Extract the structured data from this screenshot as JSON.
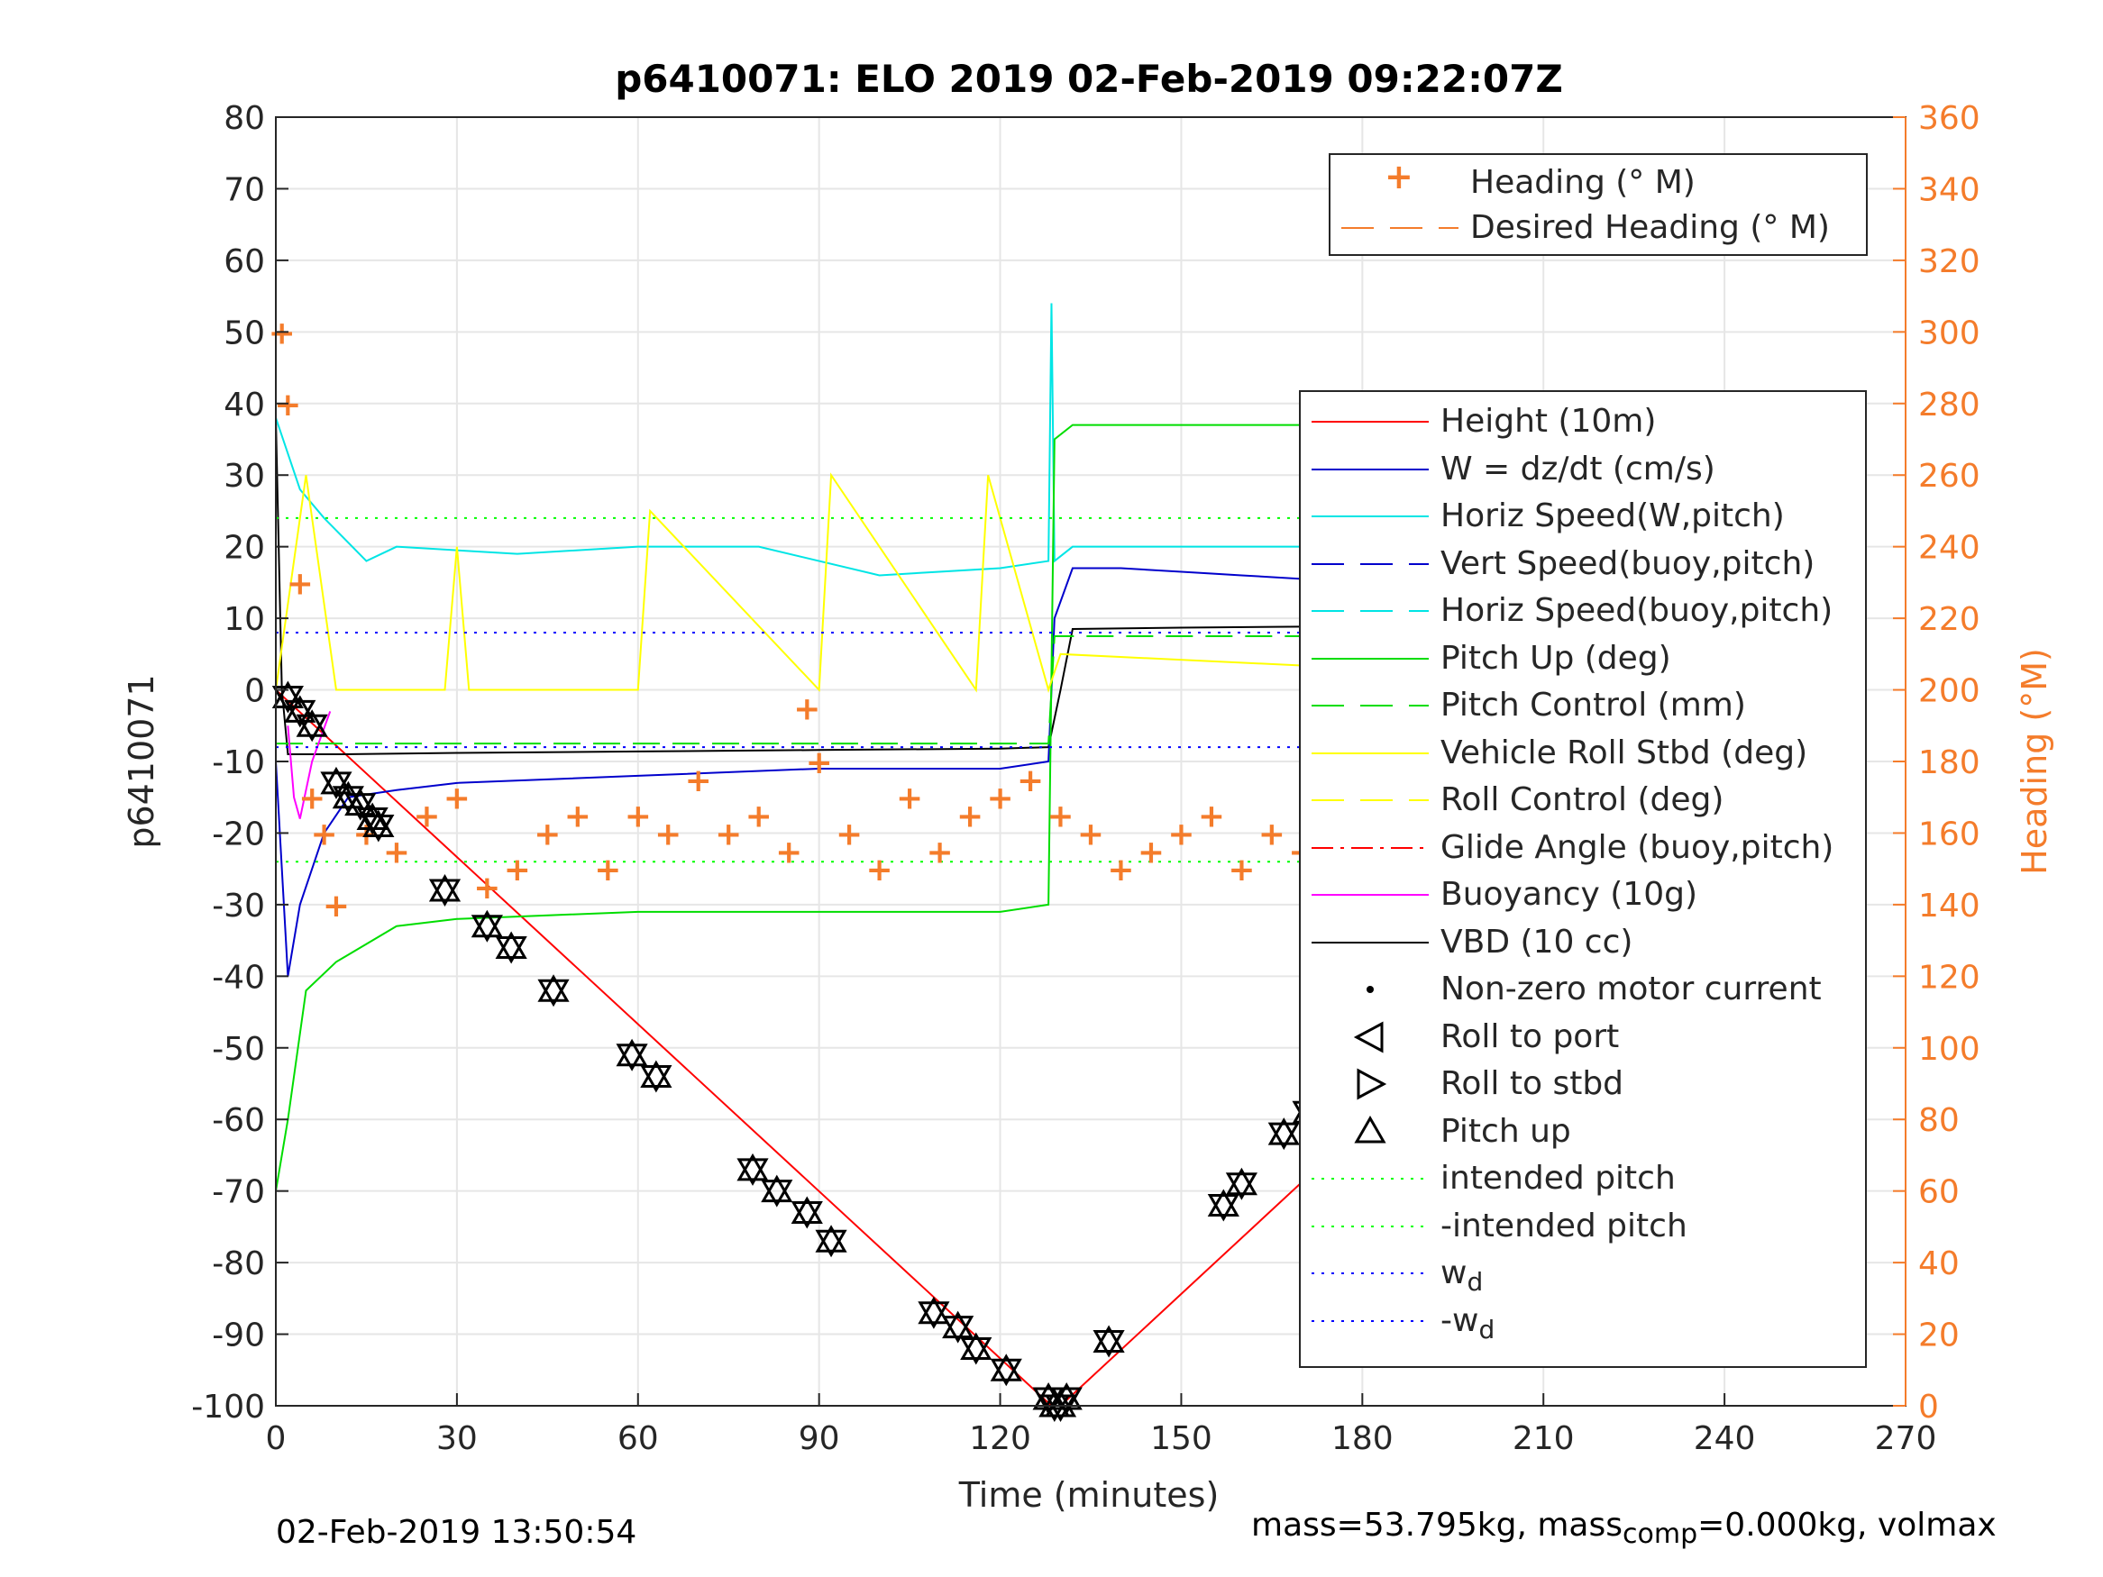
{
  "chart_data": {
    "type": "line",
    "title": "p6410071: ELO 2019 02-Feb-2019 09:22:07Z",
    "xlabel": "Time (minutes)",
    "ylabel": "p6410071",
    "y2label": "Heading (°M)",
    "xlim": [
      0,
      270
    ],
    "ylim": [
      -100,
      80
    ],
    "y2lim": [
      0,
      360
    ],
    "xticks": [
      0,
      30,
      60,
      90,
      120,
      150,
      180,
      210,
      240,
      270
    ],
    "yticks": [
      -100,
      -90,
      -80,
      -70,
      -60,
      -50,
      -40,
      -30,
      -20,
      -10,
      0,
      10,
      20,
      30,
      40,
      50,
      60,
      70,
      80
    ],
    "y2ticks": [
      0,
      20,
      40,
      60,
      80,
      100,
      120,
      140,
      160,
      180,
      200,
      220,
      240,
      260,
      280,
      300,
      320,
      340,
      360
    ],
    "grid": true,
    "colors": {
      "height": "#ff0000",
      "w": "#0000cc",
      "horiz": "#00e5e5",
      "pitch": "#00dd00",
      "roll": "#ffff00",
      "glide": "#ff0000",
      "buoy": "#ff00ff",
      "vbd": "#000000",
      "heading": "#f47c2b",
      "intended": "#00ff00",
      "wd": "#0000ff"
    },
    "legend_top": {
      "placement": "top-right",
      "entries": [
        "Heading (° M)",
        "Desired Heading (° M)"
      ]
    },
    "legend_main": {
      "placement": "right",
      "entries": [
        {
          "label": "Height (10m)",
          "style": "solid",
          "color": "#ff0000"
        },
        {
          "label": "W = dz/dt (cm/s)",
          "style": "solid",
          "color": "#0000cc"
        },
        {
          "label": "Horiz Speed(W,pitch)",
          "style": "solid",
          "color": "#00e5e5"
        },
        {
          "label": "Vert Speed(buoy,pitch)",
          "style": "dash",
          "color": "#0000cc"
        },
        {
          "label": "Horiz Speed(buoy,pitch)",
          "style": "dash",
          "color": "#00e5e5"
        },
        {
          "label": "Pitch Up (deg)",
          "style": "solid",
          "color": "#00dd00"
        },
        {
          "label": "Pitch Control (mm)",
          "style": "dash",
          "color": "#00dd00"
        },
        {
          "label": "Vehicle Roll Stbd (deg)",
          "style": "solid",
          "color": "#ffff00"
        },
        {
          "label": "Roll Control (deg)",
          "style": "dash",
          "color": "#ffff00"
        },
        {
          "label": "Glide Angle (buoy,pitch)",
          "style": "dashdot",
          "color": "#ff0000"
        },
        {
          "label": "Buoyancy (10g)",
          "style": "solid",
          "color": "#ff00ff"
        },
        {
          "label": "VBD (10 cc)",
          "style": "solid",
          "color": "#000000"
        },
        {
          "label": "Non-zero motor current",
          "style": "dot",
          "color": "#000000"
        },
        {
          "label": "Roll to port",
          "style": "tri-left",
          "color": "#000000"
        },
        {
          "label": "Roll to stbd",
          "style": "tri-right",
          "color": "#000000"
        },
        {
          "label": "Pitch up",
          "style": "tri-up",
          "color": "#000000"
        },
        {
          "label": "intended pitch",
          "style": "dotted",
          "color": "#00ff00"
        },
        {
          "label": "-intended pitch",
          "style": "dotted",
          "color": "#00ff00"
        },
        {
          "label": "w",
          "sub": "d",
          "style": "dotted",
          "color": "#0000ff"
        },
        {
          "label": "-w",
          "sub": "d",
          "style": "dotted",
          "color": "#0000ff"
        }
      ]
    },
    "series": [
      {
        "name": "Height (10m)",
        "x": [
          0,
          128.5,
          130,
          258
        ],
        "y": [
          0,
          -100,
          -100,
          0
        ]
      },
      {
        "name": "VBD (10 cc)",
        "x": [
          0,
          1,
          2,
          5,
          10,
          30,
          60,
          90,
          120,
          128,
          129,
          130,
          132,
          150,
          180,
          210,
          230,
          240,
          245,
          250,
          258
        ],
        "y": [
          38,
          0,
          -9,
          -9,
          -9,
          -8.8,
          -8.6,
          -8.4,
          -8.2,
          -8,
          -4,
          0,
          8.5,
          8.7,
          8.9,
          9,
          9,
          15,
          20,
          23,
          24
        ]
      },
      {
        "name": "W = dz/dt (cm/s)",
        "x": [
          0,
          2,
          4,
          6,
          8,
          12,
          20,
          30,
          60,
          90,
          120,
          128,
          129,
          132,
          140,
          160,
          180,
          210,
          230,
          245,
          258
        ],
        "y": [
          -10,
          -40,
          -30,
          -25,
          -20,
          -15,
          -14,
          -13,
          -12,
          -11,
          -11,
          -10,
          10,
          17,
          17,
          16,
          15,
          12,
          10,
          8,
          6
        ]
      },
      {
        "name": "Horiz Speed(W,pitch)",
        "x": [
          0,
          4,
          8,
          15,
          20,
          40,
          60,
          80,
          100,
          120,
          128,
          128.5,
          129,
          132,
          160,
          180,
          210,
          230,
          250,
          258
        ],
        "y": [
          38,
          28,
          24,
          18,
          20,
          19,
          20,
          20,
          16,
          17,
          18,
          54,
          18,
          20,
          20,
          20,
          18,
          17,
          14,
          12
        ]
      },
      {
        "name": "Pitch Up (deg)",
        "x": [
          0,
          2,
          5,
          10,
          20,
          30,
          60,
          90,
          120,
          128,
          129,
          132,
          150,
          180,
          200,
          220,
          240,
          258
        ],
        "y": [
          -70,
          -60,
          -42,
          -38,
          -33,
          -32,
          -31,
          -31,
          -31,
          -30,
          35,
          37,
          37,
          37,
          37,
          35,
          30,
          20
        ]
      },
      {
        "name": "Pitch Control (mm)",
        "x": [
          0,
          128,
          129,
          258
        ],
        "y": [
          -7.5,
          -7.5,
          7.5,
          7.5
        ]
      },
      {
        "name": "Vehicle Roll Stbd (deg)",
        "x": [
          0,
          5,
          10,
          28,
          30,
          32,
          60,
          62,
          90,
          92,
          116,
          118,
          128,
          130,
          180,
          200,
          230,
          258
        ],
        "y": [
          0,
          30,
          0,
          0,
          20,
          0,
          0,
          25,
          0,
          30,
          0,
          30,
          0,
          5,
          3,
          2,
          5,
          8
        ]
      },
      {
        "name": "Buoyancy (10g)",
        "x": [
          2,
          3,
          4,
          6,
          9
        ],
        "y": [
          -5,
          -15,
          -18,
          -10,
          -3
        ]
      },
      {
        "name": "intended pitch",
        "x": [
          0,
          258
        ],
        "y": [
          24,
          24
        ]
      },
      {
        "name": "-intended pitch",
        "x": [
          0,
          258
        ],
        "y": [
          -24,
          -24
        ]
      },
      {
        "name": "w",
        "x": [
          0,
          258
        ],
        "y": [
          8,
          8
        ]
      },
      {
        "name": "-w",
        "x": [
          0,
          258
        ],
        "y": [
          -8,
          -8
        ]
      },
      {
        "name": "Heading (° M)",
        "axis": "y2",
        "x": [
          1,
          2,
          4,
          6,
          8,
          10,
          15,
          20,
          25,
          30,
          35,
          40,
          45,
          50,
          55,
          60,
          65,
          70,
          75,
          80,
          85,
          88,
          90,
          95,
          100,
          105,
          110,
          115,
          120,
          125,
          130,
          135,
          140,
          145,
          150,
          155,
          160,
          165,
          170,
          175,
          180,
          185,
          190,
          195,
          200,
          205,
          210,
          215,
          220,
          225,
          230,
          235,
          240,
          245,
          250,
          255,
          258
        ],
        "y": [
          300,
          280,
          230,
          170,
          160,
          140,
          160,
          155,
          165,
          170,
          145,
          150,
          160,
          165,
          150,
          165,
          160,
          175,
          160,
          165,
          155,
          195,
          180,
          160,
          150,
          170,
          155,
          165,
          170,
          175,
          165,
          160,
          150,
          155,
          160,
          165,
          150,
          160,
          155,
          175,
          160,
          150,
          130,
          155,
          160,
          150,
          145,
          160,
          165,
          150,
          175,
          155,
          140,
          165,
          150,
          140,
          105
        ]
      }
    ],
    "markers": {
      "pitch_up_x": [
        2,
        4,
        6,
        10,
        12,
        14,
        16,
        17,
        28,
        35,
        39,
        46,
        59,
        63,
        79,
        83,
        88,
        92,
        109,
        113,
        116,
        121,
        128,
        129,
        130,
        131,
        138,
        157,
        160,
        167,
        171,
        175,
        179,
        181,
        183,
        185,
        195,
        198,
        201,
        204,
        210,
        212,
        219,
        221,
        223,
        227,
        229,
        233,
        236,
        238,
        243,
        246,
        249,
        251,
        253,
        255,
        258
      ],
      "pitch_up_y": [
        -1,
        -3,
        -5,
        -13,
        -15,
        -16,
        -18,
        -19,
        -28,
        -33,
        -36,
        -42,
        -51,
        -54,
        -67,
        -70,
        -73,
        -77,
        -87,
        -89,
        -92,
        -95,
        -99,
        -100,
        -100,
        -99,
        -91,
        -72,
        -69,
        -62,
        -59,
        -55,
        -52,
        -51,
        -48,
        -46,
        -38,
        -34,
        -31,
        -29,
        -26,
        -25,
        -18,
        -17,
        -16,
        -13,
        -12,
        -10,
        -9,
        -8,
        -6,
        -5,
        -4,
        -3,
        -2,
        -1,
        0
      ]
    },
    "annotations": {
      "date": "02-Feb-2019 13:50:54",
      "mass_line": {
        "a": "mass=53.795kg, mass",
        "sub": "comp",
        "b": "=0.000kg, volmax"
      }
    }
  }
}
